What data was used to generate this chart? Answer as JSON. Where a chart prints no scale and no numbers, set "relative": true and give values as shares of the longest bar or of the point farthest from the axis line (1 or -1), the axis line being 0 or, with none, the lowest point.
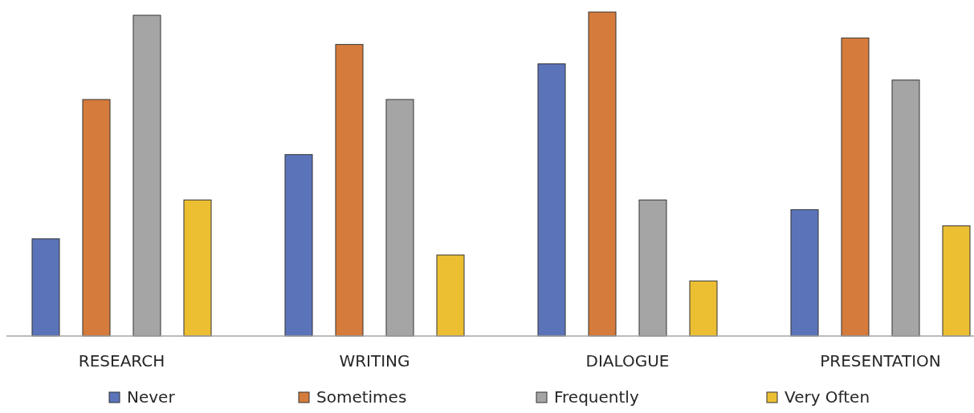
{
  "chart_data": {
    "type": "bar",
    "relative": true,
    "categories": [
      "RESEARCH",
      "WRITING",
      "DIALOGUE",
      "PRESENTATION"
    ],
    "legend": "bottom",
    "series": [
      {
        "name": "Never",
        "color": "#5b73b9",
        "values": [
          0.3,
          0.56,
          0.84,
          0.39
        ]
      },
      {
        "name": "Sometimes",
        "color": "#d57b3b",
        "values": [
          0.73,
          0.9,
          1,
          0.92
        ]
      },
      {
        "name": "Frequently",
        "color": "#a5a5a5",
        "values": [
          0.99,
          0.73,
          0.42,
          0.79
        ]
      },
      {
        "name": "Very Often",
        "color": "#ecbf33",
        "values": [
          0.42,
          0.25,
          0.17,
          0.34
        ]
      }
    ]
  }
}
